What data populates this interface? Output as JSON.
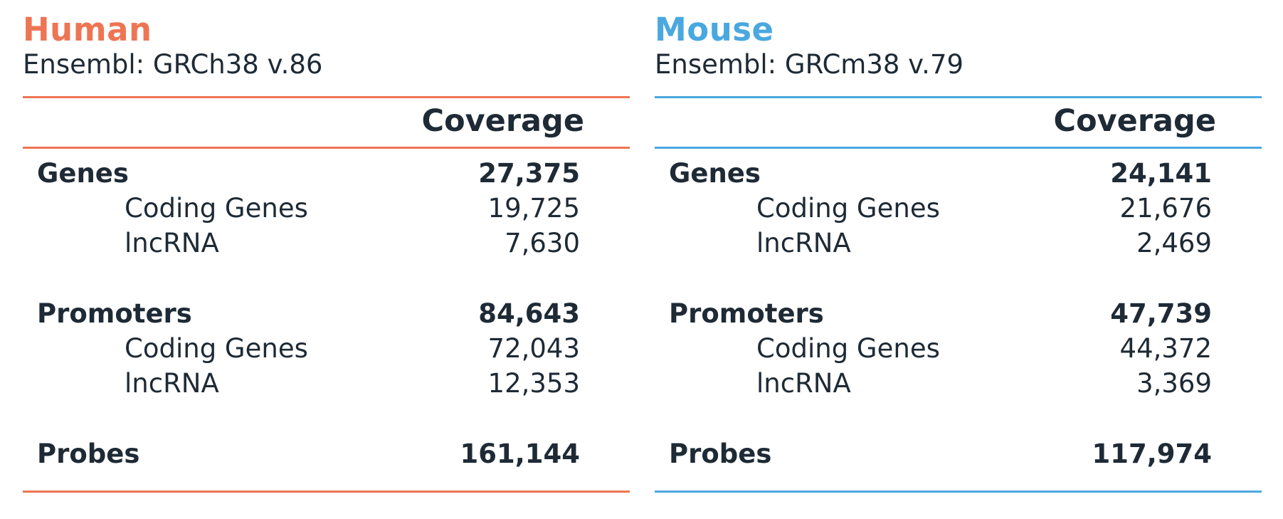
{
  "colors": {
    "human_accent": "#ee7554",
    "mouse_accent": "#4aa8e0",
    "text": "#1e2a35"
  },
  "panels": [
    {
      "species": "Human",
      "assembly": "Ensembl: GRCh38 v.86",
      "column_header": "Coverage",
      "rows": [
        {
          "label": "Genes",
          "value": "27,375"
        },
        {
          "label": "Coding Genes",
          "value": "19,725"
        },
        {
          "label": "lncRNA",
          "value": "7,630"
        },
        {
          "label": "Promoters",
          "value": "84,643"
        },
        {
          "label": "Coding Genes",
          "value": "72,043"
        },
        {
          "label": "lncRNA",
          "value": "12,353"
        },
        {
          "label": "Probes",
          "value": "161,144"
        }
      ]
    },
    {
      "species": "Mouse",
      "assembly": "Ensembl: GRCm38 v.79",
      "column_header": "Coverage",
      "rows": [
        {
          "label": "Genes",
          "value": "24,141"
        },
        {
          "label": "Coding Genes",
          "value": "21,676"
        },
        {
          "label": "lncRNA",
          "value": "2,469"
        },
        {
          "label": "Promoters",
          "value": "47,739"
        },
        {
          "label": "Coding Genes",
          "value": "44,372"
        },
        {
          "label": "lncRNA",
          "value": "3,369"
        },
        {
          "label": "Probes",
          "value": "117,974"
        }
      ]
    }
  ]
}
